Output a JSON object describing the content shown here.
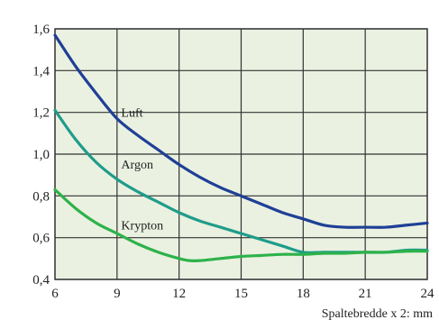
{
  "chart_data": {
    "type": "line",
    "title": "",
    "xlabel": "Spaltebredde x 2: mm",
    "ylabel": "",
    "xlim": [
      6,
      24
    ],
    "ylim": [
      0.4,
      1.6
    ],
    "x_ticks": [
      6,
      9,
      12,
      15,
      18,
      21,
      24
    ],
    "x_tick_labels": [
      "6",
      "9",
      "12",
      "15",
      "18",
      "21",
      "24"
    ],
    "y_ticks": [
      0.4,
      0.6,
      0.8,
      1.0,
      1.2,
      1.4,
      1.6
    ],
    "y_tick_labels": [
      "0,4",
      "0,6",
      "0,8",
      "1,0",
      "1,2",
      "1,4",
      "1,6"
    ],
    "grid": true,
    "legend": "none",
    "series": [
      {
        "name": "Luft",
        "color": "#1f3f96",
        "x": [
          6,
          7,
          8,
          9,
          10,
          11,
          12,
          13,
          14,
          15,
          16,
          17,
          18,
          19,
          20,
          21,
          22,
          23,
          24
        ],
        "y": [
          1.57,
          1.42,
          1.29,
          1.17,
          1.09,
          1.02,
          0.95,
          0.89,
          0.84,
          0.8,
          0.76,
          0.72,
          0.69,
          0.66,
          0.65,
          0.65,
          0.65,
          0.66,
          0.67
        ]
      },
      {
        "name": "Argon",
        "color": "#1f9c8a",
        "x": [
          6,
          7,
          8,
          9,
          10,
          11,
          12,
          13,
          14,
          15,
          16,
          17,
          18,
          19,
          20,
          21,
          22,
          23,
          24
        ],
        "y": [
          1.21,
          1.07,
          0.96,
          0.88,
          0.82,
          0.77,
          0.72,
          0.68,
          0.65,
          0.62,
          0.59,
          0.56,
          0.53,
          0.53,
          0.53,
          0.53,
          0.53,
          0.54,
          0.54
        ]
      },
      {
        "name": "Krypton",
        "color": "#2db24a",
        "x": [
          6,
          7,
          8,
          9,
          10,
          11,
          12,
          12.5,
          13,
          14,
          15,
          16,
          17,
          18,
          19,
          20,
          21,
          22,
          23,
          24
        ],
        "y": [
          0.83,
          0.74,
          0.67,
          0.62,
          0.57,
          0.53,
          0.5,
          0.49,
          0.49,
          0.5,
          0.51,
          0.515,
          0.52,
          0.52,
          0.525,
          0.525,
          0.53,
          0.53,
          0.535,
          0.535
        ]
      }
    ],
    "series_label_positions": [
      {
        "name": "Luft",
        "x": 9.2,
        "y": 1.18
      },
      {
        "name": "Argon",
        "x": 9.2,
        "y": 0.93
      },
      {
        "name": "Krypton",
        "x": 9.2,
        "y": 0.64
      }
    ]
  },
  "colors": {
    "plot_background": "#eaf1e1",
    "grid": "#333333",
    "frame_background": "#ffffff"
  }
}
